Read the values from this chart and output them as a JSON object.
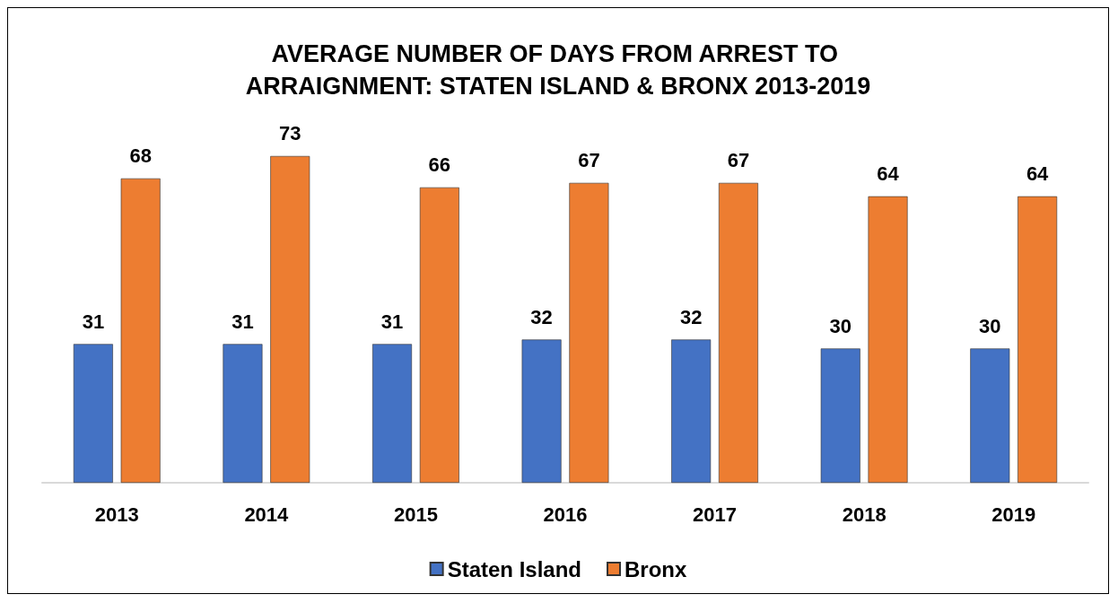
{
  "chart_data": {
    "type": "bar",
    "title": "AVERAGE NUMBER OF DAYS FROM ARREST TO ARRAIGNMENT: STATEN ISLAND & BRONX 2013-2019",
    "categories": [
      "2013",
      "2014",
      "2015",
      "2016",
      "2017",
      "2018",
      "2019"
    ],
    "series": [
      {
        "name": "Staten Island",
        "color": "#4472c4",
        "values": [
          31,
          31,
          31,
          32,
          32,
          30,
          30
        ]
      },
      {
        "name": "Bronx",
        "color": "#ed7d31",
        "values": [
          68,
          73,
          66,
          67,
          67,
          64,
          64
        ]
      }
    ],
    "data_labels": true,
    "legend": "bottom"
  }
}
